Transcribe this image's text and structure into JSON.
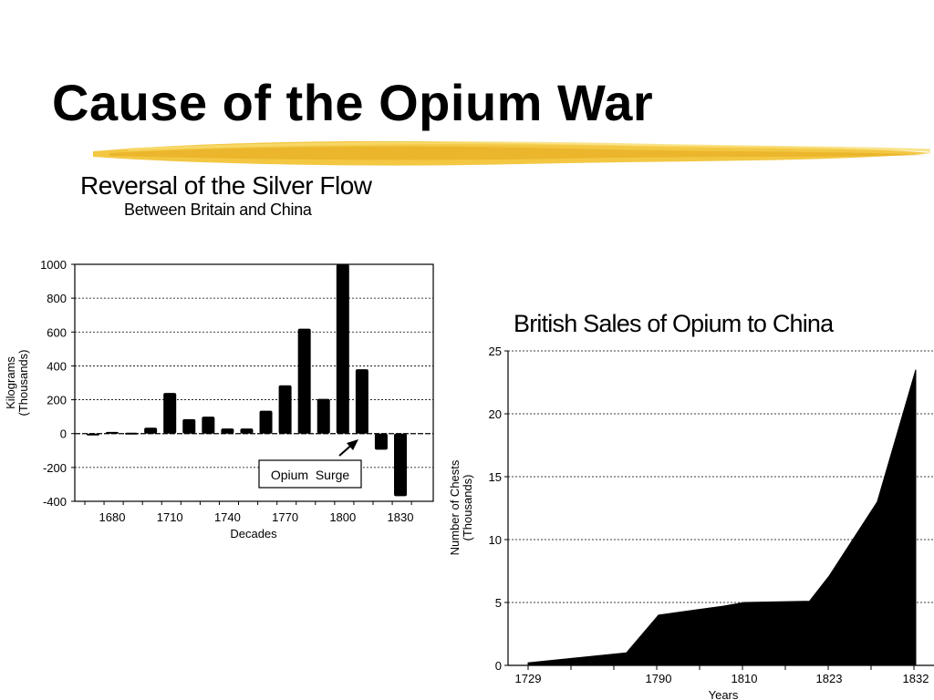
{
  "slide": {
    "title": "Cause of the Opium War",
    "accent_color": "#f2c12e"
  },
  "chart_data": [
    {
      "type": "bar",
      "title": "Reversal of the Silver Flow",
      "subtitle": "Between Britain and China",
      "xlabel": "Decades",
      "ylabel": "Kilograms (Thousands)",
      "ylim": [
        -400,
        1000
      ],
      "yticks": [
        1000,
        800,
        600,
        400,
        200,
        0,
        -200,
        -400
      ],
      "xtick_labels": [
        "1680",
        "1710",
        "1740",
        "1770",
        "1800",
        "1830"
      ],
      "grid": true,
      "categories": [
        "1670",
        "1680",
        "1690",
        "1700",
        "1710",
        "1720",
        "1730",
        "1740",
        "1750",
        "1760",
        "1770",
        "1780",
        "1790",
        "1800",
        "1810",
        "1820",
        "1830"
      ],
      "values": [
        0,
        10,
        5,
        35,
        240,
        85,
        100,
        30,
        30,
        135,
        285,
        620,
        205,
        1000,
        380,
        -95,
        -370
      ],
      "annotation": "Opium  Surge"
    },
    {
      "type": "area",
      "title": "British Sales of Opium to China",
      "xlabel": "Years",
      "ylabel": "Number of Chests (Thousands)",
      "ylim": [
        0,
        25
      ],
      "yticks": [
        0,
        5,
        10,
        15,
        20,
        25
      ],
      "xtick_labels": [
        "1729",
        "1790",
        "1810",
        "1823",
        "1832"
      ],
      "grid": true,
      "x": [
        1729,
        1775,
        1790,
        1805,
        1810,
        1820,
        1823,
        1828,
        1832
      ],
      "y": [
        0.2,
        1.0,
        4.0,
        4.7,
        5.0,
        5.1,
        7.1,
        13.0,
        23.5
      ]
    }
  ]
}
